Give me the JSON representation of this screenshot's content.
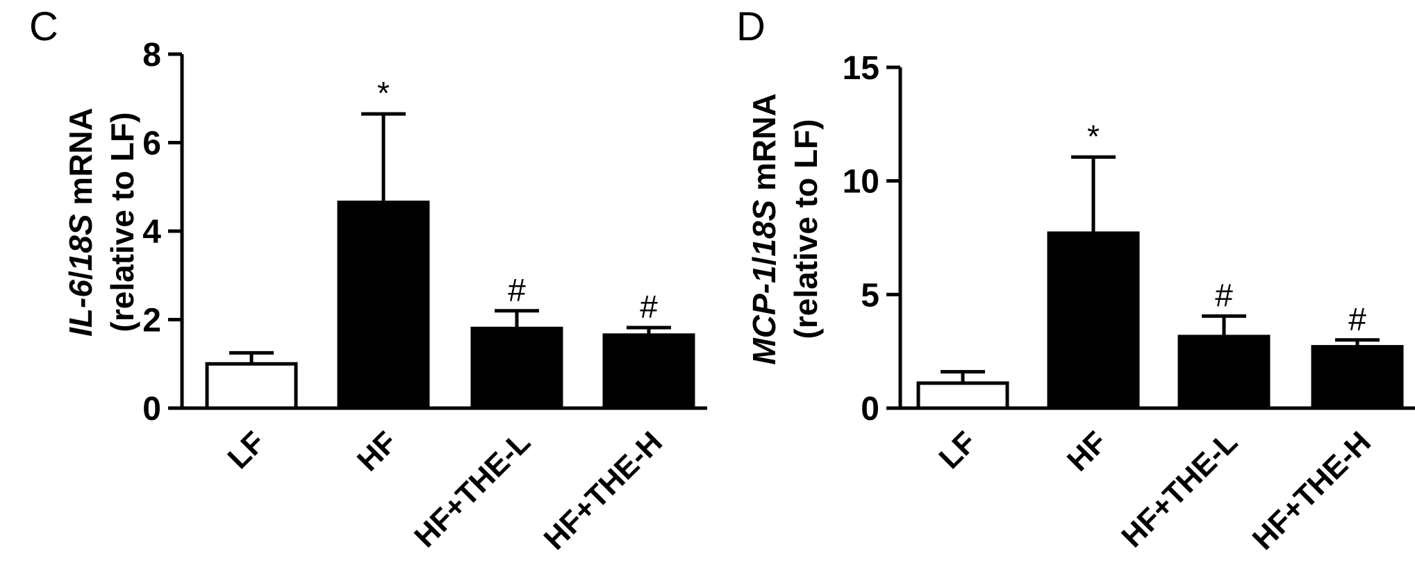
{
  "chart_data": [
    {
      "type": "bar",
      "panel_label": "C",
      "ylabel": {
        "line1": [
          {
            "text": "IL-6",
            "italic": true
          },
          {
            "text": "/",
            "italic": false
          },
          {
            "text": "18S",
            "italic": true
          },
          {
            "text": " mRNA",
            "italic": false
          }
        ],
        "line2": "(relative to LF)"
      },
      "categories": [
        "LF",
        "HF",
        "HF+THE-L",
        "HF+THE-H"
      ],
      "values": [
        1.0,
        4.65,
        1.8,
        1.65
      ],
      "errors": [
        0.25,
        2.0,
        0.4,
        0.17
      ],
      "fills": [
        "#ffffff",
        "#000000",
        "#000000",
        "#000000"
      ],
      "annotations": [
        "",
        "*",
        "#",
        "#"
      ],
      "ylim": [
        0,
        8
      ],
      "yticks": [
        "0",
        "2",
        "4",
        "6",
        "8"
      ],
      "ytick_values": [
        0,
        2,
        4,
        6,
        8
      ]
    },
    {
      "type": "bar",
      "panel_label": "D",
      "ylabel": {
        "line1": [
          {
            "text": "MCP-1",
            "italic": true
          },
          {
            "text": "/",
            "italic": false
          },
          {
            "text": "18S",
            "italic": true
          },
          {
            "text": " mRNA",
            "italic": false
          }
        ],
        "line2": "(relative to LF)"
      },
      "categories": [
        "LF",
        "HF",
        "HF+THE-L",
        "HF+THE-H"
      ],
      "values": [
        1.1,
        7.7,
        3.15,
        2.7
      ],
      "errors": [
        0.5,
        3.35,
        0.9,
        0.3
      ],
      "fills": [
        "#ffffff",
        "#000000",
        "#000000",
        "#000000"
      ],
      "annotations": [
        "",
        "*",
        "#",
        "#"
      ],
      "ylim": [
        0,
        15
      ],
      "yticks": [
        "0",
        "5",
        "10",
        "15"
      ],
      "ytick_values": [
        0,
        5,
        10,
        15
      ]
    }
  ]
}
